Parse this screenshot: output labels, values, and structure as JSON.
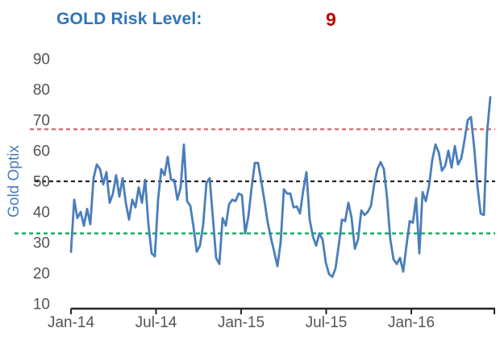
{
  "header": {
    "title_label": "GOLD Risk Level:",
    "risk_value": "9",
    "title_color": "#2E75B6",
    "risk_color": "#C00000"
  },
  "chart_data": {
    "type": "line",
    "title": "GOLD Risk Level: 9",
    "ylabel": "Gold Optix",
    "ylabel_color": "#4A7EBB",
    "tick_color": "#545454",
    "series_color": "#4A7EBB",
    "grid": false,
    "legend": "none",
    "ylim": [
      10,
      90
    ],
    "y_ticks": [
      90,
      80,
      70,
      60,
      50,
      40,
      30,
      20,
      10
    ],
    "x_ticks": [
      {
        "label": "Jan-14",
        "month_offset": 0
      },
      {
        "label": "Jul-14",
        "month_offset": 6
      },
      {
        "label": "Jan-15",
        "month_offset": 12
      },
      {
        "label": "Jul-15",
        "month_offset": 18
      },
      {
        "label": "Jan-16",
        "month_offset": 24
      }
    ],
    "x_range_months": 30,
    "ref_lines": [
      {
        "name": "excess-optimism-line",
        "value": 67,
        "color": "#D16969",
        "style": "dashed"
      },
      {
        "name": "neutral-line",
        "value": 50,
        "color": "#262626",
        "style": "dashed"
      },
      {
        "name": "excess-pessimism-line",
        "value": 33,
        "color": "#00A651",
        "style": "dashed"
      }
    ],
    "series": [
      {
        "name": "Gold Optix",
        "start_date": "2014-01-03",
        "interval_days": 7,
        "values": [
          27,
          44,
          38,
          40,
          35.5,
          41,
          36,
          51,
          55.5,
          54,
          49,
          53,
          43,
          46,
          52,
          45,
          51,
          43,
          37.5,
          44,
          41.5,
          48,
          43,
          50.5,
          36,
          26.5,
          25.5,
          44,
          54,
          52,
          58,
          50.5,
          50.5,
          44,
          48,
          62,
          43.5,
          42,
          35,
          27,
          29,
          36,
          49.5,
          51,
          38,
          25,
          23,
          38,
          35.5,
          42.5,
          44,
          43.5,
          46,
          45.5,
          33,
          38.5,
          48,
          56,
          56,
          50,
          43.5,
          36.5,
          31.5,
          27,
          22.3,
          30,
          47.4,
          46,
          46,
          41.5,
          41.8,
          39.5,
          47,
          53,
          37.5,
          32,
          29,
          33,
          31,
          23.5,
          19.7,
          18.8,
          21.5,
          29,
          37.5,
          37,
          43,
          38,
          28,
          31,
          40.5,
          39,
          40,
          42,
          49,
          54,
          56.3,
          54,
          44.5,
          31,
          24.5,
          23,
          25,
          20.5,
          29,
          37,
          36.5,
          44.5,
          26.5,
          46.5,
          43.5,
          48.5,
          57,
          62,
          59.5,
          53.5,
          55,
          60,
          54.5,
          61.5,
          55.5,
          57.5,
          63.5,
          70,
          71,
          61,
          48.5,
          39.5,
          39,
          66,
          77.5
        ]
      }
    ]
  }
}
